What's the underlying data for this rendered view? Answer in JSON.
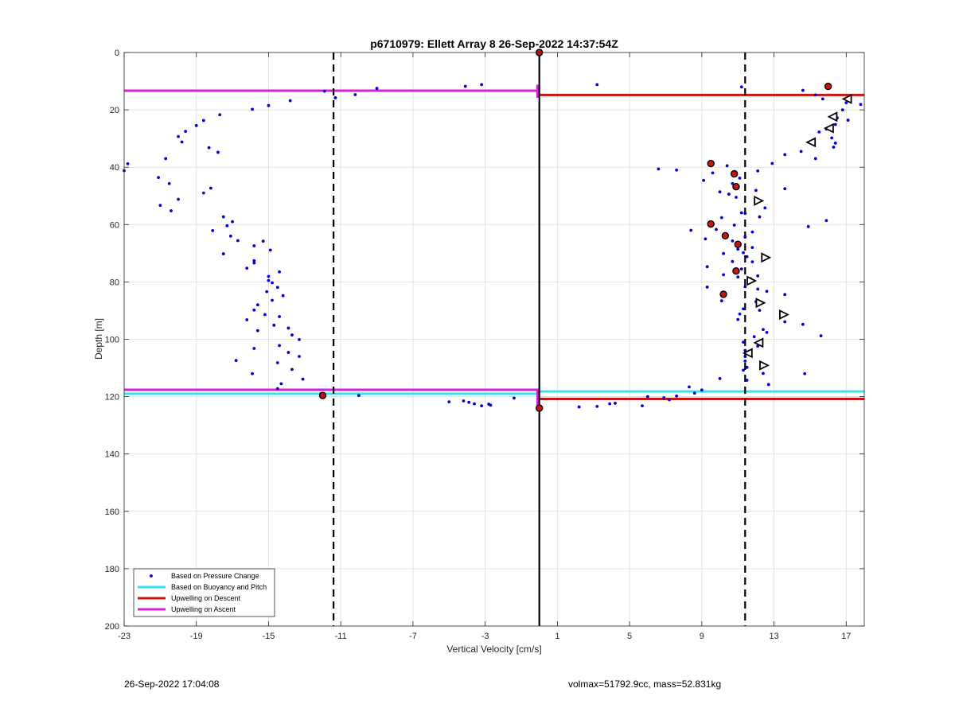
{
  "chart_data": {
    "type": "scatter",
    "title": "p6710979: Ellett Array 8 26-Sep-2022 14:37:54Z",
    "xlabel": "Vertical Velocity [cm/s]",
    "ylabel": "Depth [m]",
    "xlim": [
      -23,
      18
    ],
    "ylim": [
      0,
      200
    ],
    "y_reversed": true,
    "grid": true,
    "xticks": [
      -23,
      -19,
      -15,
      -11,
      -7,
      -3,
      1,
      5,
      9,
      13,
      17
    ],
    "yticks": [
      0,
      20,
      40,
      60,
      80,
      100,
      120,
      140,
      160,
      180,
      200
    ],
    "legend_position": "bottom-left",
    "colors": {
      "pressure": "#0000d0",
      "buoyancy": "#33e5f0",
      "descent": "#c81414",
      "ascent": "#d61fd6",
      "reference": "#000000"
    },
    "legend": [
      {
        "label": "Based on Pressure Change",
        "style": "dot",
        "color": "#0000d0"
      },
      {
        "label": "Based on Buoyancy and Pitch",
        "style": "line",
        "color": "#33e5f0"
      },
      {
        "label": "Upwelling on Descent",
        "style": "line",
        "color": "#c81414"
      },
      {
        "label": "Upwelling on Ascent",
        "style": "line",
        "color": "#d61fd6"
      }
    ],
    "reference_lines": {
      "solid_x": 0,
      "dashed_x": [
        -11.4,
        11.4
      ]
    },
    "series": [
      {
        "name": "Based on Pressure Change",
        "kind": "points",
        "points": [
          [
            -3.2,
            11.2
          ],
          [
            -4.1,
            11.8
          ],
          [
            -9,
            12.5
          ],
          [
            -10.2,
            14.7
          ],
          [
            -11.3,
            15.8
          ],
          [
            -11.9,
            13.5
          ],
          [
            -13.8,
            16.8
          ],
          [
            -15,
            18.5
          ],
          [
            -15.9,
            19.8
          ],
          [
            -17.7,
            21.7
          ],
          [
            -18.6,
            23.7
          ],
          [
            -19,
            25.5
          ],
          [
            -19.6,
            27.5
          ],
          [
            -20,
            29.3
          ],
          [
            -19.8,
            31.2
          ],
          [
            -18.3,
            33.2
          ],
          [
            -17.8,
            34.8
          ],
          [
            -20.7,
            37
          ],
          [
            -22.8,
            38.8
          ],
          [
            -23,
            41.2
          ],
          [
            -21.1,
            43.6
          ],
          [
            -20.5,
            45.7
          ],
          [
            -18.2,
            47.3
          ],
          [
            -18.6,
            49
          ],
          [
            -20,
            51.2
          ],
          [
            -21,
            53.3
          ],
          [
            -20.4,
            55.2
          ],
          [
            -17.5,
            57.3
          ],
          [
            -17,
            59
          ],
          [
            -17.3,
            60.4
          ],
          [
            -18.1,
            62.1
          ],
          [
            -17.1,
            64
          ],
          [
            -16.7,
            65.6
          ],
          [
            -15.3,
            65.8
          ],
          [
            -15.8,
            67.4
          ],
          [
            -14.9,
            68.9
          ],
          [
            -17.5,
            70.2
          ],
          [
            -15.8,
            72.6
          ],
          [
            -15.8,
            73.4
          ],
          [
            -16.2,
            75.2
          ],
          [
            -14.4,
            76.5
          ],
          [
            -15,
            78.1
          ],
          [
            -15,
            79.5
          ],
          [
            -14.8,
            80.3
          ],
          [
            -14.5,
            81.9
          ],
          [
            -15.1,
            83.4
          ],
          [
            -14.2,
            84.8
          ],
          [
            -14.8,
            86.4
          ],
          [
            -15.6,
            88
          ],
          [
            -15.8,
            89.8
          ],
          [
            -15.2,
            91.4
          ],
          [
            -14.4,
            92.1
          ],
          [
            -16.2,
            93.2
          ],
          [
            -14.7,
            95.1
          ],
          [
            -13.9,
            96.1
          ],
          [
            -15.6,
            97
          ],
          [
            -13.7,
            98.5
          ],
          [
            -13.3,
            100.1
          ],
          [
            -14.4,
            102.2
          ],
          [
            -15.8,
            103.2
          ],
          [
            -13.9,
            104.6
          ],
          [
            -13.3,
            106
          ],
          [
            -16.8,
            107.4
          ],
          [
            -14.5,
            108.2
          ],
          [
            -13.7,
            110.5
          ],
          [
            -15.9,
            112
          ],
          [
            -13.1,
            113.9
          ],
          [
            -14.3,
            115.5
          ],
          [
            -14.5,
            117.2
          ],
          [
            -12.1,
            119
          ],
          [
            -10,
            119.6
          ],
          [
            -5,
            121.8
          ],
          [
            -4.2,
            121.5
          ],
          [
            -3.9,
            122
          ],
          [
            -3.6,
            122.5
          ],
          [
            -3.2,
            123.2
          ],
          [
            -2.8,
            122.6
          ],
          [
            -2.7,
            123
          ],
          [
            -1.4,
            120.5
          ],
          [
            3.2,
            11.2
          ],
          [
            11.2,
            12
          ],
          [
            14.6,
            13.2
          ],
          [
            15.3,
            14.8
          ],
          [
            15.7,
            16.2
          ],
          [
            17,
            17.5
          ],
          [
            17.8,
            18.1
          ],
          [
            16.8,
            20
          ],
          [
            17.1,
            23.6
          ],
          [
            16.5,
            22.8
          ],
          [
            16.4,
            25.1
          ],
          [
            15.9,
            26.7
          ],
          [
            15.5,
            27.7
          ],
          [
            16.2,
            29.8
          ],
          [
            16.4,
            31.6
          ],
          [
            16.3,
            33
          ],
          [
            14.5,
            34.5
          ],
          [
            13.6,
            35.6
          ],
          [
            12.9,
            38.7
          ],
          [
            15.3,
            37
          ],
          [
            6.6,
            40.6
          ],
          [
            7.6,
            41
          ],
          [
            10.4,
            39.5
          ],
          [
            9.6,
            42
          ],
          [
            11.1,
            43.8
          ],
          [
            12.1,
            41.3
          ],
          [
            9.1,
            44.6
          ],
          [
            10.7,
            45.7
          ],
          [
            10,
            48.6
          ],
          [
            12,
            48.1
          ],
          [
            13.6,
            47.5
          ],
          [
            10.9,
            50.5
          ],
          [
            12,
            51.5
          ],
          [
            10.5,
            49.4
          ],
          [
            12.5,
            54.2
          ],
          [
            11.2,
            55.9
          ],
          [
            11.4,
            56.1
          ],
          [
            10.1,
            57.6
          ],
          [
            12.2,
            57.3
          ],
          [
            15.9,
            58.6
          ],
          [
            14.9,
            60.7
          ],
          [
            8.4,
            62
          ],
          [
            9.8,
            61.7
          ],
          [
            10.8,
            60.2
          ],
          [
            11.8,
            62.6
          ],
          [
            9.2,
            65
          ],
          [
            10.7,
            65.7
          ],
          [
            11.4,
            64.3
          ],
          [
            11,
            68.6
          ],
          [
            11.8,
            68
          ],
          [
            10.2,
            70.1
          ],
          [
            11.3,
            69.8
          ],
          [
            11.5,
            71.2
          ],
          [
            10.7,
            72.9
          ],
          [
            11.8,
            73
          ],
          [
            9.3,
            74.7
          ],
          [
            11.2,
            75.5
          ],
          [
            10.2,
            77.5
          ],
          [
            11,
            78.3
          ],
          [
            11.7,
            78.9
          ],
          [
            12.1,
            77.9
          ],
          [
            9.3,
            81.8
          ],
          [
            11.4,
            81.7
          ],
          [
            12.1,
            82.5
          ],
          [
            12.6,
            83.3
          ],
          [
            13.6,
            84.4
          ],
          [
            10.1,
            86.6
          ],
          [
            12,
            86.9
          ],
          [
            11.3,
            89.4
          ],
          [
            11.1,
            91.2
          ],
          [
            12.2,
            89.9
          ],
          [
            11,
            93.1
          ],
          [
            13.6,
            93.9
          ],
          [
            14.6,
            94.8
          ],
          [
            12.4,
            96.6
          ],
          [
            12.6,
            97.6
          ],
          [
            11.9,
            99.1
          ],
          [
            15.6,
            98.8
          ],
          [
            11.3,
            101
          ],
          [
            12.1,
            102.4
          ],
          [
            11.4,
            103.9
          ],
          [
            11.4,
            106
          ],
          [
            11.4,
            107.6
          ],
          [
            11.5,
            109.8
          ],
          [
            11.3,
            110.8
          ],
          [
            12.4,
            111.9
          ],
          [
            14.7,
            112
          ],
          [
            10,
            113.7
          ],
          [
            11.5,
            114.3
          ],
          [
            12.7,
            115.8
          ],
          [
            8.3,
            116.6
          ],
          [
            8.6,
            118.8
          ],
          [
            9,
            117.7
          ],
          [
            7.6,
            119.8
          ],
          [
            6.9,
            120.4
          ],
          [
            7.2,
            121.1
          ],
          [
            6,
            120
          ],
          [
            5.7,
            123.2
          ],
          [
            4.2,
            122.3
          ],
          [
            3.9,
            122.5
          ],
          [
            3.2,
            123.4
          ],
          [
            2.2,
            123.6
          ]
        ]
      },
      {
        "name": "Based on Buoyancy and Pitch",
        "kind": "hline",
        "segments": [
          {
            "x": [
              -23,
              -0.1
            ],
            "y": 119
          },
          {
            "x": [
              -0.1,
              18
            ],
            "y": 118.2
          }
        ]
      },
      {
        "name": "Upwelling on Descent",
        "kind": "hline",
        "segments": [
          {
            "x": [
              -0.1,
              18
            ],
            "y": 14.8
          },
          {
            "x": [
              -0.1,
              18
            ],
            "y": 120.8
          }
        ]
      },
      {
        "name": "Upwelling on Ascent",
        "kind": "hline",
        "segments": [
          {
            "x": [
              -23,
              -0.1
            ],
            "y": 13.3
          },
          {
            "x": [
              -23,
              -0.1
            ],
            "y": 117.6
          },
          {
            "x": [
              -0.1,
              -0.1
            ],
            "y": [
              11.2,
              15.8
            ]
          },
          {
            "x": [
              -0.1,
              -0.1
            ],
            "y": [
              117.2,
              124
            ]
          }
        ]
      },
      {
        "kind": "marker-star",
        "points": [
          [
            0,
            0
          ],
          [
            16,
            11.8
          ],
          [
            9.5,
            38.7
          ],
          [
            10.8,
            42.3
          ],
          [
            10.9,
            46.8
          ],
          [
            9.5,
            59.8
          ],
          [
            10.3,
            63.9
          ],
          [
            11,
            66.9
          ],
          [
            10.9,
            76.2
          ],
          [
            10.2,
            84.3
          ],
          [
            -12,
            119.6
          ],
          [
            0,
            124
          ]
        ]
      },
      {
        "kind": "marker-left-triangle",
        "points": [
          [
            17.1,
            16.2
          ],
          [
            16.3,
            22.4
          ],
          [
            16.1,
            26.4
          ],
          [
            15.1,
            31.3
          ],
          [
            12.2,
            101.2
          ],
          [
            11.6,
            104.8
          ]
        ]
      },
      {
        "kind": "marker-right-triangle",
        "points": [
          [
            12.1,
            51.7
          ],
          [
            12.5,
            71.5
          ],
          [
            11.7,
            79.6
          ],
          [
            12.2,
            87.3
          ],
          [
            13.5,
            91.4
          ],
          [
            12.4,
            109.1
          ]
        ]
      }
    ]
  },
  "footer": {
    "left_text": "26-Sep-2022 17:04:08",
    "right_text": "volmax=51792.9cc, mass=52.831kg"
  }
}
